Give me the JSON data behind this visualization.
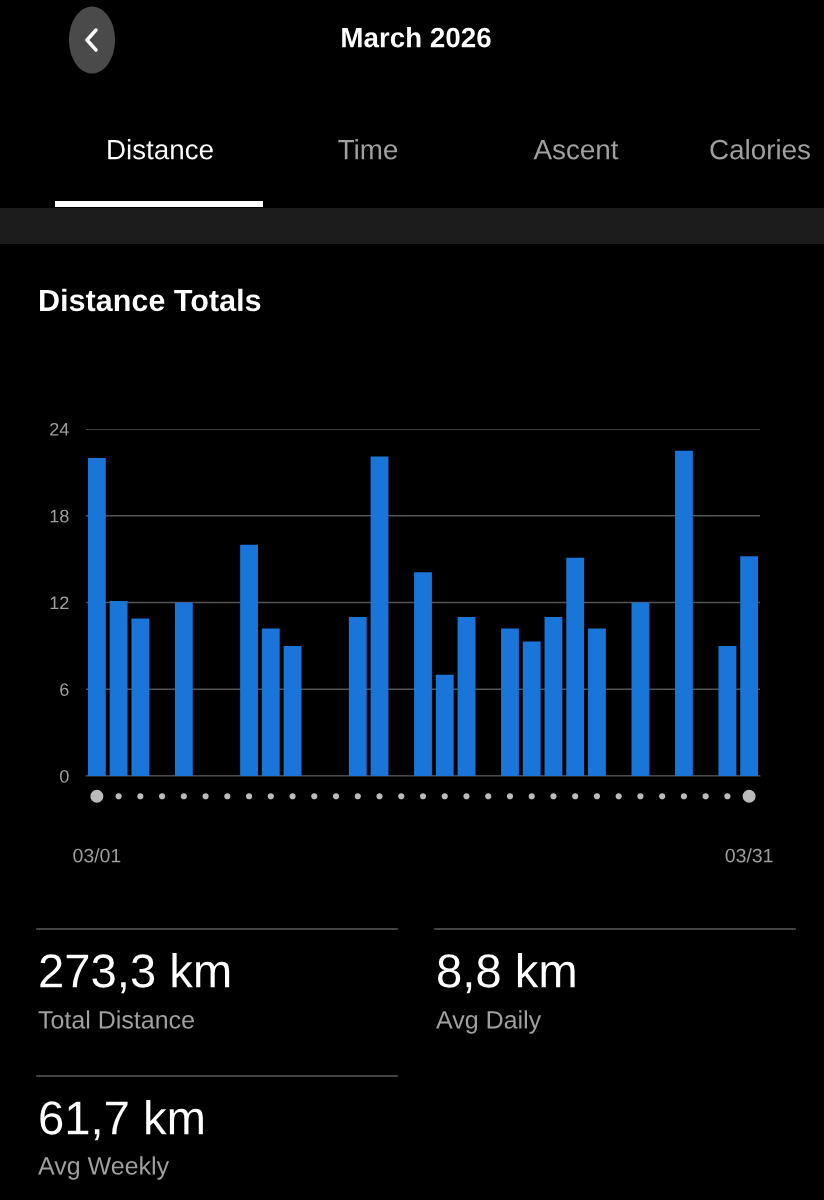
{
  "chart_data": {
    "type": "bar",
    "title": "March 2026",
    "subtitle": "Distance Totals",
    "categories": [
      "03/01",
      null,
      null,
      null,
      null,
      null,
      null,
      null,
      null,
      null,
      null,
      null,
      null,
      null,
      null,
      null,
      null,
      null,
      null,
      null,
      null,
      null,
      null,
      null,
      null,
      null,
      null,
      null,
      null,
      null,
      "03/31"
    ],
    "values": [
      22.0,
      12.1,
      10.9,
      0,
      12.0,
      0,
      0,
      16.0,
      10.2,
      9.0,
      0,
      0,
      11.0,
      22.1,
      0,
      14.1,
      7.0,
      11.0,
      0,
      10.2,
      9.3,
      11.0,
      15.1,
      10.2,
      0,
      12.0,
      0,
      22.5,
      0,
      9.0,
      15.2
    ],
    "color": "#1a75d9",
    "ylim": [
      0,
      24
    ],
    "yticks": [
      0,
      6,
      12,
      18,
      24
    ],
    "grid": "y",
    "annotations": [
      "Distance",
      "Time",
      "Ascent",
      "Calories",
      "273,3 km",
      "Total Distance",
      "8,8 km",
      "Avg Daily",
      "61,7 km",
      "Avg Weekly"
    ]
  }
}
